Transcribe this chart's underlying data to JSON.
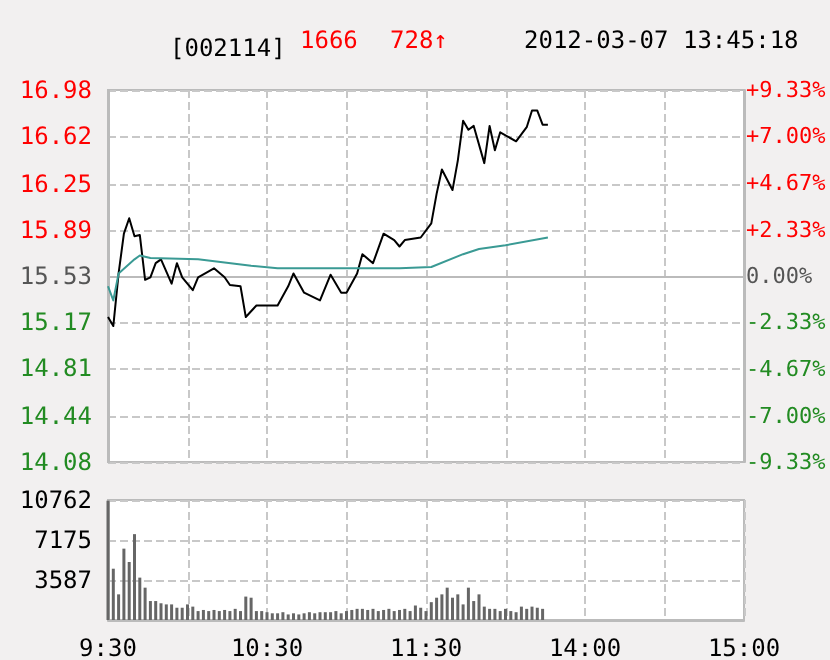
{
  "chart_data": [
    {
      "type": "line",
      "title": "[002114]",
      "annotations": [
        "1666",
        "728↑",
        "2012-03-07 13:45:18"
      ],
      "categories": [
        null,
        null,
        null,
        null,
        null,
        null,
        null,
        null,
        null,
        null,
        null,
        null,
        null,
        null,
        null,
        null,
        null,
        null,
        null,
        null,
        null,
        null,
        null,
        null,
        null,
        null,
        null,
        null,
        null,
        null,
        null,
        null,
        null,
        null,
        null,
        null,
        null,
        null,
        null,
        null,
        null,
        null,
        null,
        null,
        null,
        null,
        null,
        null,
        null,
        null,
        null,
        null,
        null,
        null,
        null,
        null,
        null,
        null,
        null,
        null,
        null,
        null,
        null,
        null,
        null,
        null,
        null,
        null,
        null,
        null,
        null,
        null,
        null,
        null,
        null,
        null,
        null,
        null,
        null,
        null,
        null,
        null,
        null,
        null,
        null,
        null,
        null,
        null,
        null,
        null,
        null,
        null,
        null,
        null,
        null,
        null,
        null,
        null,
        null,
        null,
        null,
        null,
        null,
        null,
        null,
        null,
        null,
        null,
        null,
        null,
        null,
        null,
        null,
        null,
        null,
        null,
        null,
        null,
        null,
        null,
        null
      ],
      "ylim": [
        14.08,
        16.98
      ],
      "yticks": [
        14.08,
        14.44,
        14.81,
        15.17,
        15.53,
        15.89,
        16.25,
        16.62,
        16.98
      ],
      "y2lim": [
        -9.33,
        9.33
      ],
      "y2ticks": [
        {
          "value": -9.33,
          "label": "-9.33%"
        },
        {
          "value": -7,
          "label": "-7.00%"
        },
        {
          "value": -4.67,
          "label": "-4.67%"
        },
        {
          "value": -2.33,
          "label": "-2.33%"
        },
        {
          "value": 0,
          "label": "0.00%"
        },
        {
          "value": 2.33,
          "label": "+2.33%"
        },
        {
          "value": 4.67,
          "label": "+4.67%"
        },
        {
          "value": 7,
          "label": "+7.00%"
        },
        {
          "value": 9.33,
          "label": "+9.33%"
        }
      ],
      "tick_labels": "y",
      "grid": true,
      "line_style": "solid",
      "series": [
        {
          "color": "#000000",
          "values": [
            15.21,
            15.14,
            15.55,
            15.86,
            15.98,
            15.84,
            15.85,
            15.5,
            15.52,
            15.63,
            15.66,
            null,
            15.47,
            15.63,
            15.52,
            null,
            15.42,
            15.52,
            null,
            null,
            15.59,
            null,
            15.52,
            15.46,
            null,
            15.45,
            15.21,
            null,
            15.3,
            null,
            null,
            null,
            15.3,
            null,
            15.45,
            15.55,
            null,
            15.4,
            null,
            null,
            15.34,
            null,
            15.54,
            null,
            15.4,
            15.4,
            null,
            15.55,
            15.7,
            null,
            15.63,
            null,
            15.86,
            null,
            15.81,
            15.76,
            15.81,
            null,
            null,
            15.83,
            null,
            15.94,
            16.17,
            16.36,
            null,
            16.2,
            16.43,
            16.74,
            16.67,
            16.7,
            null,
            16.41,
            16.7,
            16.51,
            16.65,
            null,
            null,
            16.58,
            null,
            16.69,
            16.82,
            16.82,
            16.71,
            16.71,
            null,
            null,
            null,
            null,
            null,
            null,
            null,
            null,
            null,
            null,
            null,
            null,
            null,
            null,
            null,
            null,
            null,
            null,
            null,
            null,
            null,
            null,
            null,
            null,
            null,
            null,
            null,
            null,
            null,
            null,
            null,
            null,
            null,
            null,
            null,
            null,
            null
          ]
        },
        {
          "color": "#3a9a94",
          "values": [
            15.45,
            15.34,
            15.55,
            null,
            null,
            15.66,
            15.69,
            null,
            15.67,
            null,
            null,
            null,
            null,
            null,
            null,
            null,
            null,
            15.66,
            null,
            null,
            null,
            null,
            null,
            null,
            null,
            null,
            null,
            15.61,
            null,
            null,
            null,
            null,
            15.59,
            null,
            null,
            null,
            null,
            null,
            null,
            null,
            null,
            null,
            null,
            null,
            null,
            15.59,
            null,
            null,
            null,
            null,
            null,
            null,
            null,
            null,
            null,
            15.59,
            null,
            null,
            null,
            null,
            null,
            15.6,
            null,
            null,
            null,
            null,
            null,
            15.7,
            null,
            null,
            15.74,
            null,
            null,
            null,
            null,
            15.77,
            null,
            null,
            null,
            null,
            null,
            null,
            null,
            15.83,
            null,
            null,
            null,
            null,
            null,
            null,
            null,
            null,
            null,
            null,
            null,
            null,
            null,
            null,
            null,
            null,
            null,
            null,
            null,
            null,
            null,
            null,
            null,
            null,
            null,
            null,
            null,
            null,
            null,
            null,
            null,
            null,
            null,
            null,
            null,
            null,
            null
          ]
        }
      ]
    },
    {
      "type": "bar",
      "categories": [
        "9:30",
        null,
        null,
        null,
        null,
        null,
        null,
        null,
        null,
        null,
        null,
        null,
        null,
        null,
        null,
        null,
        null,
        null,
        null,
        null,
        null,
        null,
        null,
        null,
        null,
        null,
        null,
        null,
        null,
        null,
        "10:30",
        null,
        null,
        null,
        null,
        null,
        null,
        null,
        null,
        null,
        null,
        null,
        null,
        null,
        null,
        null,
        null,
        null,
        null,
        null,
        null,
        null,
        null,
        null,
        null,
        null,
        null,
        null,
        null,
        null,
        "11:30",
        null,
        null,
        null,
        null,
        null,
        null,
        null,
        null,
        null,
        null,
        null,
        null,
        null,
        null,
        null,
        null,
        null,
        null,
        null,
        null,
        null,
        null,
        null,
        null,
        null,
        null,
        null,
        null,
        null,
        "14:00",
        null,
        null,
        null,
        null,
        null,
        null,
        null,
        null,
        null,
        null,
        null,
        null,
        null,
        null,
        null,
        null,
        null,
        null,
        null,
        null,
        null,
        null,
        null,
        null,
        null,
        null,
        null,
        null,
        null,
        "15:00"
      ],
      "ylim": [
        0,
        10762
      ],
      "yticks": [
        {
          "value": 0,
          "label": null
        },
        3587,
        7175,
        10762
      ],
      "grid": true,
      "series": [
        {
          "color": "#666666",
          "values": [
            10700,
            4600,
            2300,
            6400,
            5200,
            7700,
            3800,
            2900,
            1700,
            1700,
            1500,
            1400,
            1400,
            1100,
            1100,
            1400,
            1200,
            800,
            900,
            800,
            900,
            800,
            900,
            800,
            1000,
            800,
            2100,
            2000,
            800,
            800,
            700,
            600,
            600,
            700,
            500,
            600,
            500,
            600,
            700,
            600,
            700,
            700,
            700,
            800,
            600,
            800,
            900,
            1000,
            1000,
            900,
            1000,
            800,
            900,
            1000,
            800,
            900,
            1000,
            800,
            1300,
            1100,
            800,
            1600,
            2000,
            2300,
            2900,
            2000,
            2300,
            1400,
            2900,
            1700,
            2300,
            1200,
            1000,
            1000,
            800,
            1000,
            800,
            700,
            1200,
            1000,
            1200,
            1100,
            1000,
            null,
            null,
            null,
            null,
            null,
            null,
            null,
            null,
            null,
            null,
            null,
            null,
            null,
            null,
            null,
            null,
            null,
            null,
            null,
            null,
            null,
            null,
            null,
            null,
            null,
            null,
            null,
            null,
            null,
            null,
            null,
            null,
            null,
            null,
            null,
            null,
            null,
            null
          ]
        }
      ]
    }
  ]
}
